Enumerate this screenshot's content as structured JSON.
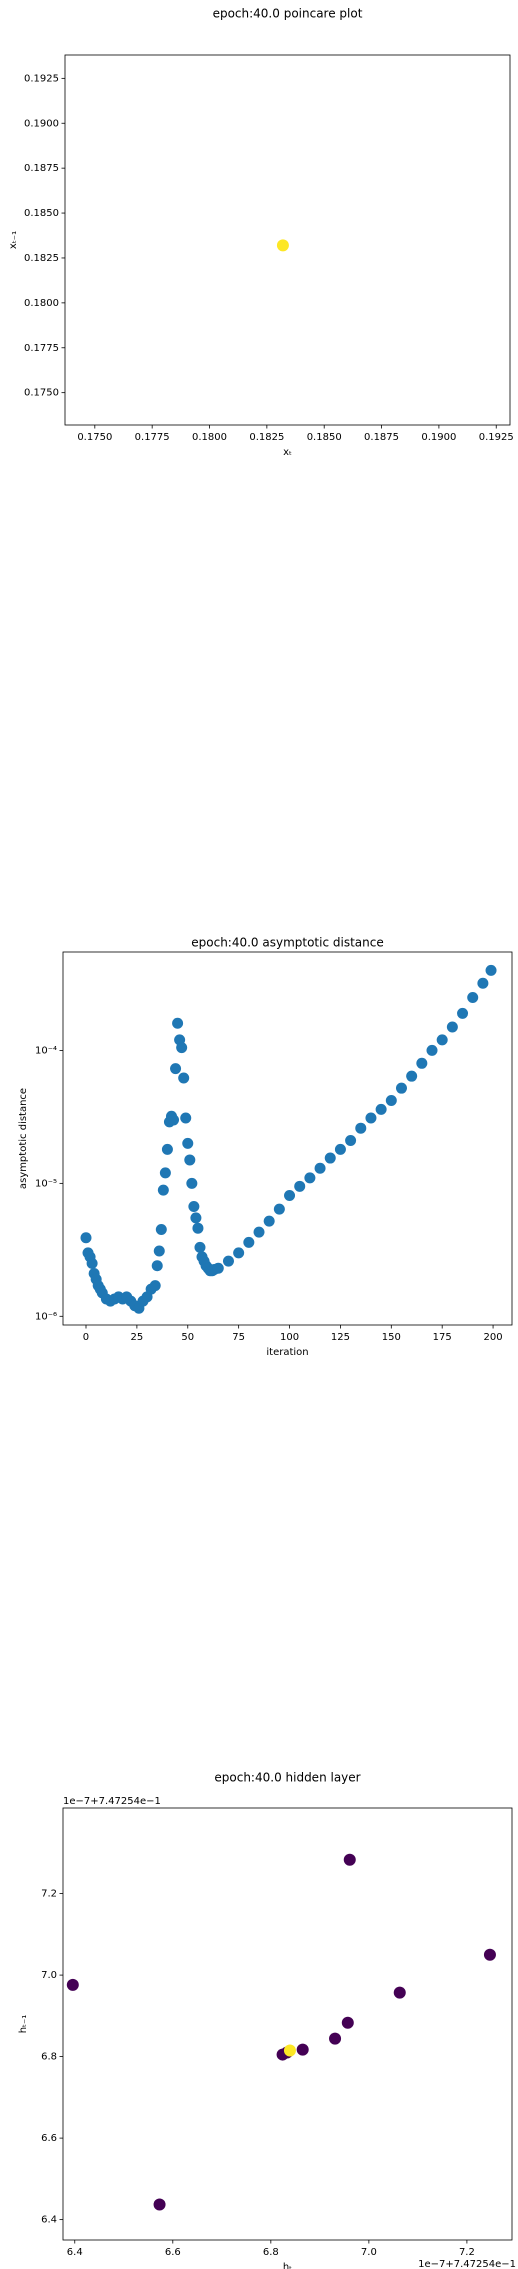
{
  "chart_data": [
    {
      "type": "scatter",
      "title": "epoch:40.0 poincare plot",
      "xlabel": "xₜ",
      "ylabel": "xₜ₋₁",
      "x": [
        0.1832
      ],
      "values": [
        0.1832
      ],
      "color": "#fde725",
      "xlim": [
        0.1737,
        0.1931
      ],
      "ylim": [
        0.1732,
        0.1938
      ],
      "xticks": [
        {
          "value": 0.175,
          "label": "0.1750"
        },
        0.1775,
        {
          "value": 0.18,
          "label": "0.1800"
        },
        0.1825,
        {
          "value": 0.185,
          "label": "0.1850"
        },
        0.1875,
        {
          "value": 0.19,
          "label": "0.1900"
        },
        0.1925
      ],
      "yticks": [
        {
          "value": 0.175,
          "label": "0.1750"
        },
        0.1775,
        {
          "value": 0.18,
          "label": "0.1800"
        },
        0.1825,
        {
          "value": 0.185,
          "label": "0.1850"
        },
        0.1875,
        {
          "value": 0.19,
          "label": "0.1900"
        },
        0.1925
      ]
    },
    {
      "type": "scatter",
      "title": "epoch:40.0 asymptotic distance",
      "xlabel": "iteration",
      "ylabel": "asymptotic distance",
      "yscale": "log",
      "color": "#1f77b4",
      "x": [
        0,
        1,
        2,
        3,
        4,
        5,
        6,
        7,
        8,
        10,
        12,
        14,
        16,
        18,
        20,
        22,
        24,
        26,
        28,
        30,
        32,
        34,
        35,
        36,
        37,
        38,
        39,
        40,
        41,
        42,
        43,
        44,
        45,
        46,
        47,
        48,
        49,
        50,
        51,
        52,
        53,
        54,
        55,
        56,
        57,
        58,
        59,
        60,
        61,
        62,
        63,
        65,
        70,
        75,
        80,
        85,
        90,
        95,
        100,
        105,
        110,
        115,
        120,
        125,
        130,
        135,
        140,
        145,
        150,
        155,
        160,
        165,
        170,
        175,
        180,
        185,
        190,
        195,
        199
      ],
      "values": [
        3.9e-06,
        3e-06,
        2.8e-06,
        2.5e-06,
        2.1e-06,
        1.9e-06,
        1.7e-06,
        1.6e-06,
        1.5e-06,
        1.35e-06,
        1.3e-06,
        1.35e-06,
        1.4e-06,
        1.35e-06,
        1.4e-06,
        1.3e-06,
        1.2e-06,
        1.15e-06,
        1.3e-06,
        1.4e-06,
        1.6e-06,
        1.7e-06,
        2.4e-06,
        3.1e-06,
        4.5e-06,
        8.9e-06,
        1.2e-05,
        1.8e-05,
        2.9e-05,
        3.2e-05,
        3e-05,
        7.3e-05,
        0.00016,
        0.00012,
        0.000105,
        6.2e-05,
        3.1e-05,
        2e-05,
        1.5e-05,
        1e-05,
        6.7e-06,
        5.5e-06,
        4.6e-06,
        3.3e-06,
        2.8e-06,
        2.6e-06,
        2.4e-06,
        2.3e-06,
        2.2e-06,
        2.2e-06,
        2.25e-06,
        2.3e-06,
        2.6e-06,
        3e-06,
        3.6e-06,
        4.3e-06,
        5.2e-06,
        6.4e-06,
        8.1e-06,
        9.5e-06,
        1.1e-05,
        1.3e-05,
        1.55e-05,
        1.8e-05,
        2.1e-05,
        2.6e-05,
        3.1e-05,
        3.6e-05,
        4.2e-05,
        5.2e-05,
        6.4e-05,
        8e-05,
        0.0001,
        0.00012,
        0.00015,
        0.00019,
        0.00025,
        0.00032,
        0.0004
      ],
      "xlim": [
        -11.3,
        209.3
      ],
      "ylim": [
        8.6e-07,
        0.00055
      ],
      "xticks": [
        0,
        25,
        50,
        75,
        100,
        125,
        150,
        175,
        200
      ],
      "yticks": [
        {
          "value": 1e-06,
          "label": "10⁻⁶"
        },
        {
          "value": 1e-05,
          "label": "10⁻⁵"
        },
        {
          "value": 0.0001,
          "label": "10⁻⁴"
        }
      ]
    },
    {
      "type": "scatter",
      "title": "epoch:40.0 hidden layer",
      "xlabel": "hₜ",
      "ylabel": "hₜ₋₁",
      "x_offset": "1e−7+7.47254e−1",
      "y_offset": "1e−7+7.47254e−1",
      "x": [
        6.396,
        6.573,
        6.824,
        6.833,
        6.865,
        6.931,
        6.957,
        6.961,
        7.063,
        7.247,
        6.839
      ],
      "values": [
        6.976,
        6.437,
        6.805,
        6.81,
        6.817,
        6.844,
        6.883,
        7.283,
        6.957,
        7.05,
        6.815
      ],
      "colors": [
        "#440154",
        "#440154",
        "#440154",
        "#440154",
        "#440154",
        "#440154",
        "#440154",
        "#440154",
        "#440154",
        "#440154",
        "#fde725"
      ],
      "xlim": [
        6.376,
        7.292
      ],
      "ylim": [
        6.35,
        7.41
      ],
      "xticks": [
        6.4,
        6.6,
        6.8,
        {
          "value": 7,
          "label": "7.0"
        },
        7.2
      ],
      "yticks": [
        6.4,
        6.6,
        6.8,
        {
          "value": 7,
          "label": "7.0"
        },
        7.2
      ]
    }
  ]
}
